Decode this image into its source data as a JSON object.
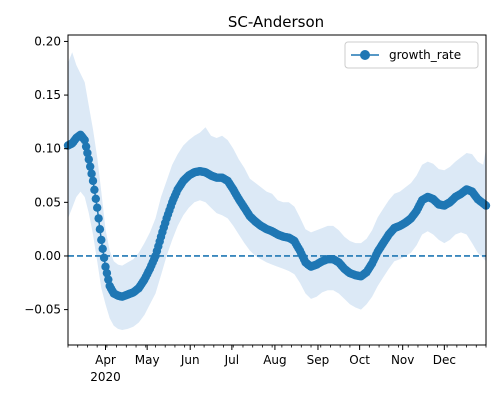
{
  "chart_data": {
    "type": "line",
    "title": "SC-Anderson",
    "xlabel": "",
    "ylabel": "",
    "x_range": [
      "2020-03-05",
      "2020-12-31"
    ],
    "ylim": [
      -0.083,
      0.206
    ],
    "y_ticks": [
      -0.05,
      0.0,
      0.05,
      0.1,
      0.15,
      0.2
    ],
    "y_tick_labels": [
      "−0.05",
      "0.00",
      "0.05",
      "0.10",
      "0.15",
      "0.20"
    ],
    "x_ticks": [
      {
        "date": "2020-04-01",
        "label": "Apr",
        "sublabel": "2020"
      },
      {
        "date": "2020-05-01",
        "label": "May",
        "sublabel": ""
      },
      {
        "date": "2020-06-01",
        "label": "Jun",
        "sublabel": ""
      },
      {
        "date": "2020-07-01",
        "label": "Jul",
        "sublabel": ""
      },
      {
        "date": "2020-08-01",
        "label": "Aug",
        "sublabel": ""
      },
      {
        "date": "2020-09-01",
        "label": "Sep",
        "sublabel": ""
      },
      {
        "date": "2020-10-01",
        "label": "Oct",
        "sublabel": ""
      },
      {
        "date": "2020-11-01",
        "label": "Nov",
        "sublabel": ""
      },
      {
        "date": "2020-12-01",
        "label": "Dec",
        "sublabel": ""
      }
    ],
    "grid": false,
    "legend": {
      "placement": "upper-right",
      "entries": [
        "growth_rate"
      ]
    },
    "reference_line": {
      "y": 0.0,
      "style": "dashed"
    },
    "colors": {
      "line": "#1f77b4",
      "band": "#dce9f6",
      "ref_line": "#1f77b4"
    },
    "series": [
      {
        "name": "growth_rate",
        "x": [
          "2020-03-05",
          "2020-03-08",
          "2020-03-11",
          "2020-03-14",
          "2020-03-17",
          "2020-03-20",
          "2020-03-23",
          "2020-03-26",
          "2020-03-29",
          "2020-04-01",
          "2020-04-04",
          "2020-04-07",
          "2020-04-10",
          "2020-04-13",
          "2020-04-17",
          "2020-04-21",
          "2020-04-25",
          "2020-04-29",
          "2020-05-03",
          "2020-05-07",
          "2020-05-11",
          "2020-05-15",
          "2020-05-19",
          "2020-05-23",
          "2020-05-27",
          "2020-05-31",
          "2020-06-04",
          "2020-06-08",
          "2020-06-12",
          "2020-06-16",
          "2020-06-20",
          "2020-06-24",
          "2020-06-28",
          "2020-07-02",
          "2020-07-06",
          "2020-07-10",
          "2020-07-14",
          "2020-07-18",
          "2020-07-22",
          "2020-07-26",
          "2020-07-30",
          "2020-08-03",
          "2020-08-07",
          "2020-08-11",
          "2020-08-15",
          "2020-08-19",
          "2020-08-23",
          "2020-08-27",
          "2020-08-31",
          "2020-09-04",
          "2020-09-08",
          "2020-09-12",
          "2020-09-16",
          "2020-09-20",
          "2020-09-24",
          "2020-09-28",
          "2020-10-02",
          "2020-10-06",
          "2020-10-10",
          "2020-10-14",
          "2020-10-18",
          "2020-10-22",
          "2020-10-26",
          "2020-10-30",
          "2020-11-03",
          "2020-11-07",
          "2020-11-11",
          "2020-11-15",
          "2020-11-19",
          "2020-11-23",
          "2020-11-27",
          "2020-12-01",
          "2020-12-05",
          "2020-12-09",
          "2020-12-13",
          "2020-12-17",
          "2020-12-21",
          "2020-12-25",
          "2020-12-29",
          "2020-12-31"
        ],
        "values": [
          0.103,
          0.105,
          0.11,
          0.113,
          0.108,
          0.09,
          0.07,
          0.045,
          0.015,
          -0.01,
          -0.028,
          -0.035,
          -0.037,
          -0.038,
          -0.036,
          -0.034,
          -0.03,
          -0.022,
          -0.012,
          0.0,
          0.018,
          0.035,
          0.05,
          0.062,
          0.07,
          0.075,
          0.078,
          0.079,
          0.078,
          0.075,
          0.073,
          0.073,
          0.07,
          0.062,
          0.053,
          0.045,
          0.037,
          0.032,
          0.028,
          0.025,
          0.023,
          0.02,
          0.018,
          0.017,
          0.014,
          0.005,
          -0.006,
          -0.01,
          -0.008,
          -0.005,
          -0.003,
          -0.003,
          -0.006,
          -0.012,
          -0.016,
          -0.018,
          -0.019,
          -0.015,
          -0.007,
          0.004,
          0.012,
          0.02,
          0.026,
          0.028,
          0.031,
          0.035,
          0.042,
          0.052,
          0.055,
          0.053,
          0.048,
          0.047,
          0.05,
          0.055,
          0.058,
          0.062,
          0.06,
          0.053,
          0.049,
          0.047
        ],
        "lower": [
          0.035,
          0.045,
          0.055,
          0.06,
          0.055,
          0.04,
          0.02,
          -0.005,
          -0.03,
          -0.045,
          -0.058,
          -0.065,
          -0.068,
          -0.069,
          -0.068,
          -0.066,
          -0.062,
          -0.055,
          -0.045,
          -0.035,
          -0.018,
          0.0,
          0.015,
          0.028,
          0.038,
          0.045,
          0.05,
          0.052,
          0.05,
          0.045,
          0.04,
          0.038,
          0.035,
          0.028,
          0.02,
          0.012,
          0.005,
          0.0,
          -0.003,
          -0.006,
          -0.008,
          -0.01,
          -0.012,
          -0.014,
          -0.017,
          -0.025,
          -0.035,
          -0.04,
          -0.038,
          -0.034,
          -0.032,
          -0.032,
          -0.035,
          -0.04,
          -0.045,
          -0.048,
          -0.05,
          -0.045,
          -0.038,
          -0.028,
          -0.02,
          -0.012,
          -0.005,
          -0.003,
          0.0,
          0.003,
          0.01,
          0.02,
          0.023,
          0.02,
          0.015,
          0.012,
          0.015,
          0.02,
          0.022,
          0.02,
          0.012,
          0.003,
          -0.002,
          -0.005
        ],
        "upper": [
          0.18,
          0.19,
          0.178,
          0.17,
          0.162,
          0.14,
          0.118,
          0.092,
          0.06,
          0.025,
          0.005,
          -0.005,
          -0.008,
          -0.009,
          -0.006,
          -0.003,
          0.003,
          0.012,
          0.022,
          0.035,
          0.055,
          0.07,
          0.085,
          0.095,
          0.103,
          0.108,
          0.112,
          0.115,
          0.12,
          0.112,
          0.11,
          0.112,
          0.108,
          0.1,
          0.09,
          0.082,
          0.072,
          0.068,
          0.064,
          0.06,
          0.058,
          0.052,
          0.05,
          0.05,
          0.046,
          0.036,
          0.025,
          0.022,
          0.024,
          0.026,
          0.028,
          0.028,
          0.024,
          0.018,
          0.014,
          0.012,
          0.012,
          0.016,
          0.024,
          0.036,
          0.044,
          0.052,
          0.058,
          0.06,
          0.064,
          0.068,
          0.075,
          0.085,
          0.088,
          0.086,
          0.081,
          0.08,
          0.083,
          0.088,
          0.092,
          0.096,
          0.095,
          0.088,
          0.085,
          0.1
        ]
      }
    ]
  }
}
